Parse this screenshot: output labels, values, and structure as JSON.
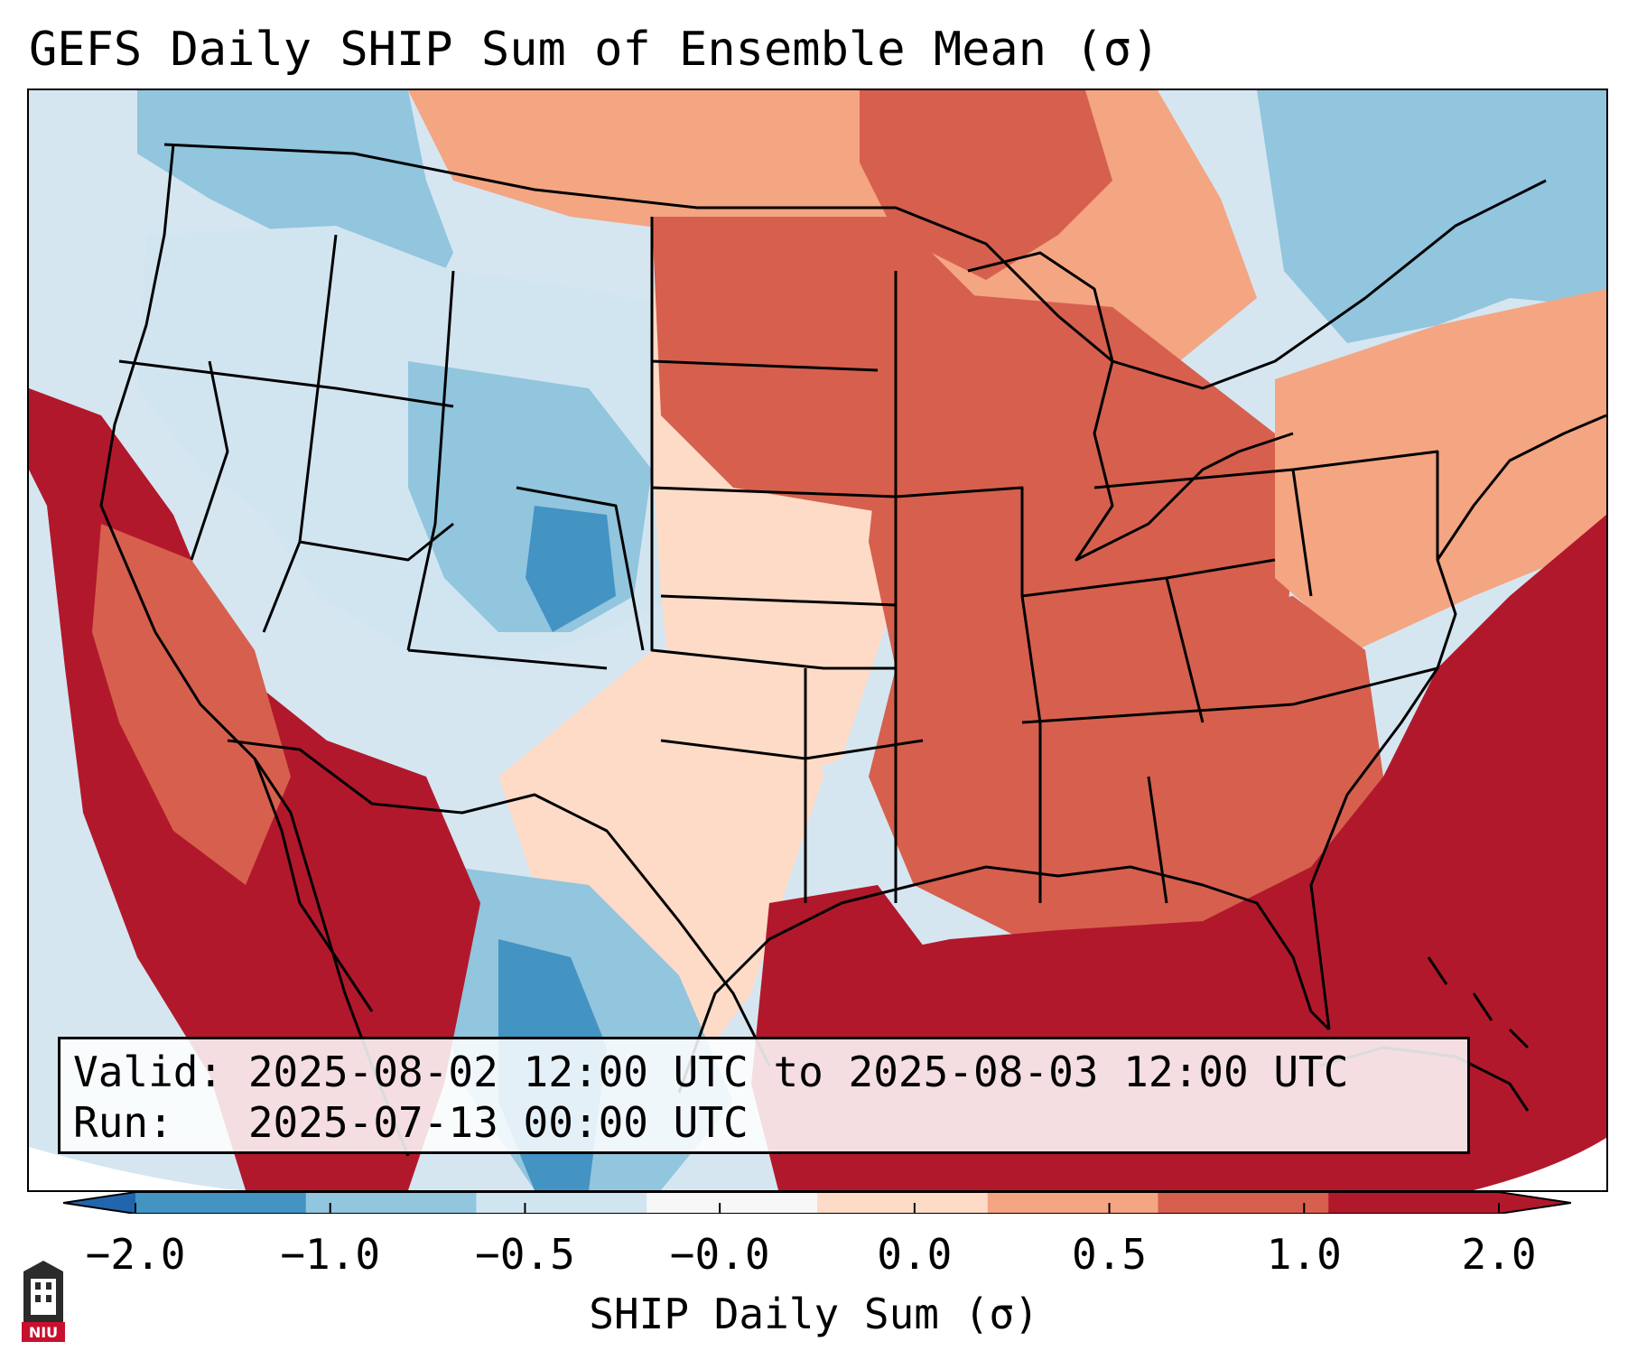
{
  "title": "GEFS Daily SHIP Sum of Ensemble Mean (σ)",
  "info": {
    "valid": "Valid: 2025-08-02 12:00 UTC to 2025-08-03 12:00 UTC",
    "run": "Run:   2025-07-13 00:00 UTC"
  },
  "colorbar": {
    "label": "SHIP Daily Sum (σ)",
    "ticks": [
      "−2.0",
      "−1.0",
      "−0.5",
      "−0.0",
      "0.0",
      "0.5",
      "1.0",
      "2.0"
    ],
    "bins": [
      "#4393c3",
      "#92c5de",
      "#d1e5f0",
      "#f7f7f7",
      "#fddbc7",
      "#f4a582",
      "#d6604d",
      "#b2182b"
    ],
    "extend_low": "#2166ac",
    "extend_high": "#b2182b"
  },
  "logo": {
    "text": "NIU",
    "icon": "niu-building-logo-icon"
  },
  "colors": {
    "ocean_neutral": "#d5e6f1",
    "gulf_atlantic_high": "#b2182b",
    "border_lines": "#000000"
  }
}
